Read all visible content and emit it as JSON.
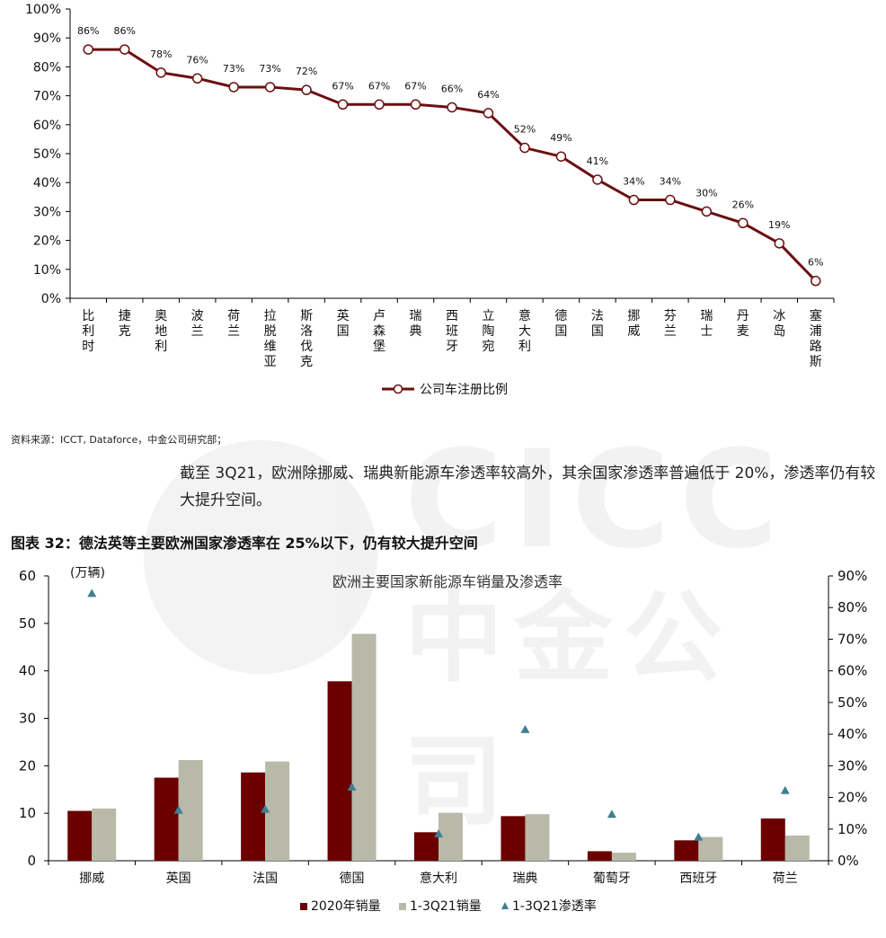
{
  "chart_data": [
    {
      "type": "line",
      "categories": [
        "比利时",
        "捷克",
        "奥地利",
        "波兰",
        "荷兰",
        "拉脱维亚",
        "斯洛伐克",
        "英国",
        "卢森堡",
        "瑞典",
        "西班牙",
        "立陶宛",
        "意大利",
        "德国",
        "法国",
        "挪威",
        "芬兰",
        "瑞士",
        "丹麦",
        "冰岛",
        "塞浦路斯"
      ],
      "values": [
        86,
        86,
        78,
        76,
        73,
        73,
        72,
        67,
        67,
        67,
        66,
        64,
        52,
        49,
        41,
        34,
        34,
        30,
        26,
        19,
        6
      ],
      "data_labels": [
        "86%",
        "86%",
        "78%",
        "76%",
        "73%",
        "73%",
        "72%",
        "67%",
        "67%",
        "67%",
        "66%",
        "64%",
        "52%",
        "49%",
        "41%",
        "34%",
        "34%",
        "30%",
        "26%",
        "19%",
        "6%"
      ],
      "series": [
        {
          "name": "公司车注册比例",
          "color": "#6b0f0f"
        }
      ],
      "ylim": [
        0,
        100
      ],
      "yticks": [
        "0%",
        "10%",
        "20%",
        "30%",
        "40%",
        "50%",
        "60%",
        "70%",
        "80%",
        "90%",
        "100%"
      ],
      "legend_position": "bottom",
      "grid": false
    },
    {
      "type": "bar",
      "title": "欧洲主要国家新能源车销量及渗透率",
      "ylabel": "(万辆)",
      "categories": [
        "挪威",
        "英国",
        "法国",
        "德国",
        "意大利",
        "瑞典",
        "葡萄牙",
        "西班牙",
        "荷兰"
      ],
      "ylim": [
        0,
        60
      ],
      "yticks": [
        "0",
        "10",
        "20",
        "30",
        "40",
        "50",
        "60"
      ],
      "y2lim": [
        0,
        90
      ],
      "y2ticks": [
        "0%",
        "10%",
        "20%",
        "30%",
        "40%",
        "50%",
        "60%",
        "70%",
        "80%",
        "90%"
      ],
      "series": [
        {
          "name": "2020年销量",
          "kind": "bar",
          "axis": "left",
          "color": "#6b0000",
          "values": [
            10.5,
            17.5,
            18.6,
            37.8,
            6.0,
            9.4,
            2.0,
            4.3,
            8.9
          ]
        },
        {
          "name": "1-3Q21销量",
          "kind": "bar",
          "axis": "left",
          "color": "#b8b9a8",
          "values": [
            11.0,
            21.2,
            20.9,
            47.8,
            10.1,
            9.8,
            1.7,
            5.0,
            5.3
          ]
        },
        {
          "name": "1-3Q21渗透率",
          "kind": "marker",
          "axis": "right",
          "color": "#3f7f93",
          "values": [
            84.5,
            16.0,
            16.3,
            23.3,
            8.5,
            41.5,
            14.7,
            7.5,
            22.2
          ]
        }
      ],
      "legend_position": "bottom",
      "grid": false
    }
  ],
  "texts": {
    "source": "资料来源：ICCT, Dataforce，中金公司研究部；",
    "paragraph": "截至 3Q21，欧洲除挪威、瑞典新能源车渗透率较高外，其余国家渗透率普遍低于 20%，渗透率仍有较大提升空间。",
    "figure_title": "图表 32：德法英等主要欧洲国家渗透率在 25%以下，仍有较大提升空间",
    "watermark_text": "CICC 中金公司"
  }
}
